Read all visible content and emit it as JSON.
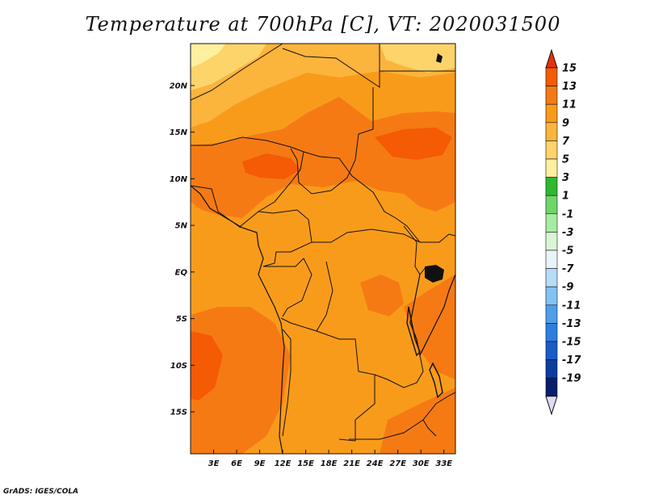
{
  "title": "Temperature at 700hPa [C], VT: 2020031500",
  "credit": "GrADS: IGES/COLA",
  "map": {
    "lon_range": [
      0,
      34.5
    ],
    "lat_range": [
      -19.5,
      24.5
    ],
    "lon_ticks": [
      "3E",
      "6E",
      "9E",
      "12E",
      "15E",
      "18E",
      "21E",
      "24E",
      "27E",
      "30E",
      "33E"
    ],
    "lon_tick_values": [
      3,
      6,
      9,
      12,
      15,
      18,
      21,
      24,
      27,
      30,
      33
    ],
    "lat_ticks": [
      "20N",
      "15N",
      "10N",
      "5N",
      "EQ",
      "5S",
      "10S",
      "15S"
    ],
    "lat_tick_values": [
      20,
      15,
      10,
      5,
      0,
      -5,
      -10,
      -15
    ]
  },
  "colorbar": {
    "labels": [
      "15",
      "13",
      "11",
      "9",
      "7",
      "5",
      "3",
      "1",
      "-1",
      "-3",
      "-5",
      "-7",
      "-9",
      "-11",
      "-13",
      "-15",
      "-17",
      "-19"
    ],
    "colors": [
      "#e8300a",
      "#f55a05",
      "#f57a14",
      "#f99b1a",
      "#fbb43c",
      "#fdd46a",
      "#fff0a0",
      "#2eb830",
      "#6ed66a",
      "#a8eca2",
      "#d8f6d4",
      "#e8f4fa",
      "#b7dcf8",
      "#85c1f2",
      "#4f9ee8",
      "#2e7ee0",
      "#1a5cc8",
      "#0e3c9e",
      "#0a1c6e",
      "#dcdcf4"
    ],
    "colors_note": ""
  }
}
